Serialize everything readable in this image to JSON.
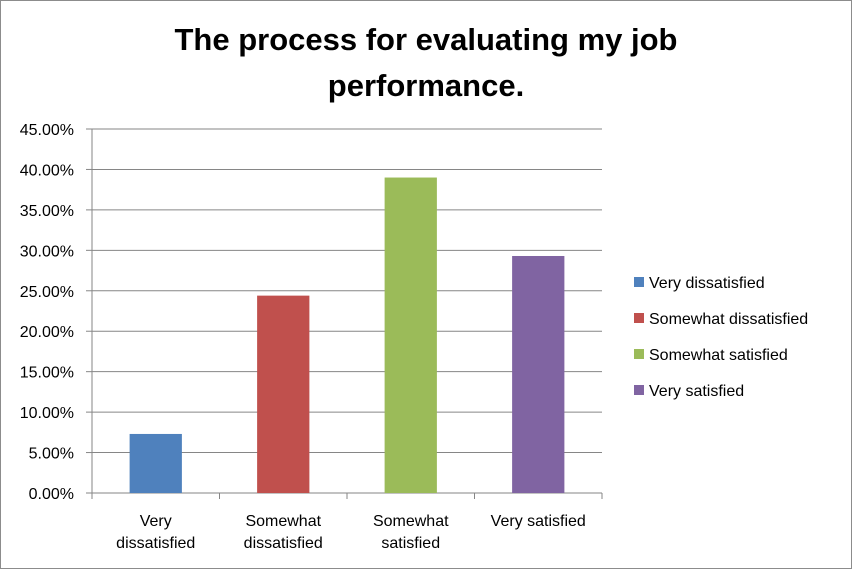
{
  "chart_data": {
    "type": "bar",
    "title_lines": [
      "The process for evaluating my job",
      "performance."
    ],
    "categories": [
      [
        "Very",
        "dissatisfied"
      ],
      [
        "Somewhat",
        "dissatisfied"
      ],
      [
        "Somewhat",
        "satisfied"
      ],
      [
        "Very satisfied"
      ]
    ],
    "values": [
      7.3,
      24.4,
      39.0,
      29.3
    ],
    "value_format": "percent",
    "ylim": [
      0,
      45
    ],
    "yticks": [
      0,
      5,
      10,
      15,
      20,
      25,
      30,
      35,
      40,
      45
    ],
    "grid": true,
    "legend": {
      "position": "right",
      "entries": [
        "Very dissatisfied",
        "Somewhat dissatisfied",
        "Somewhat satisfied",
        "Very satisfied"
      ]
    },
    "colors": [
      "#4f81bd",
      "#c0504d",
      "#9bbb59",
      "#8064a2"
    ]
  }
}
